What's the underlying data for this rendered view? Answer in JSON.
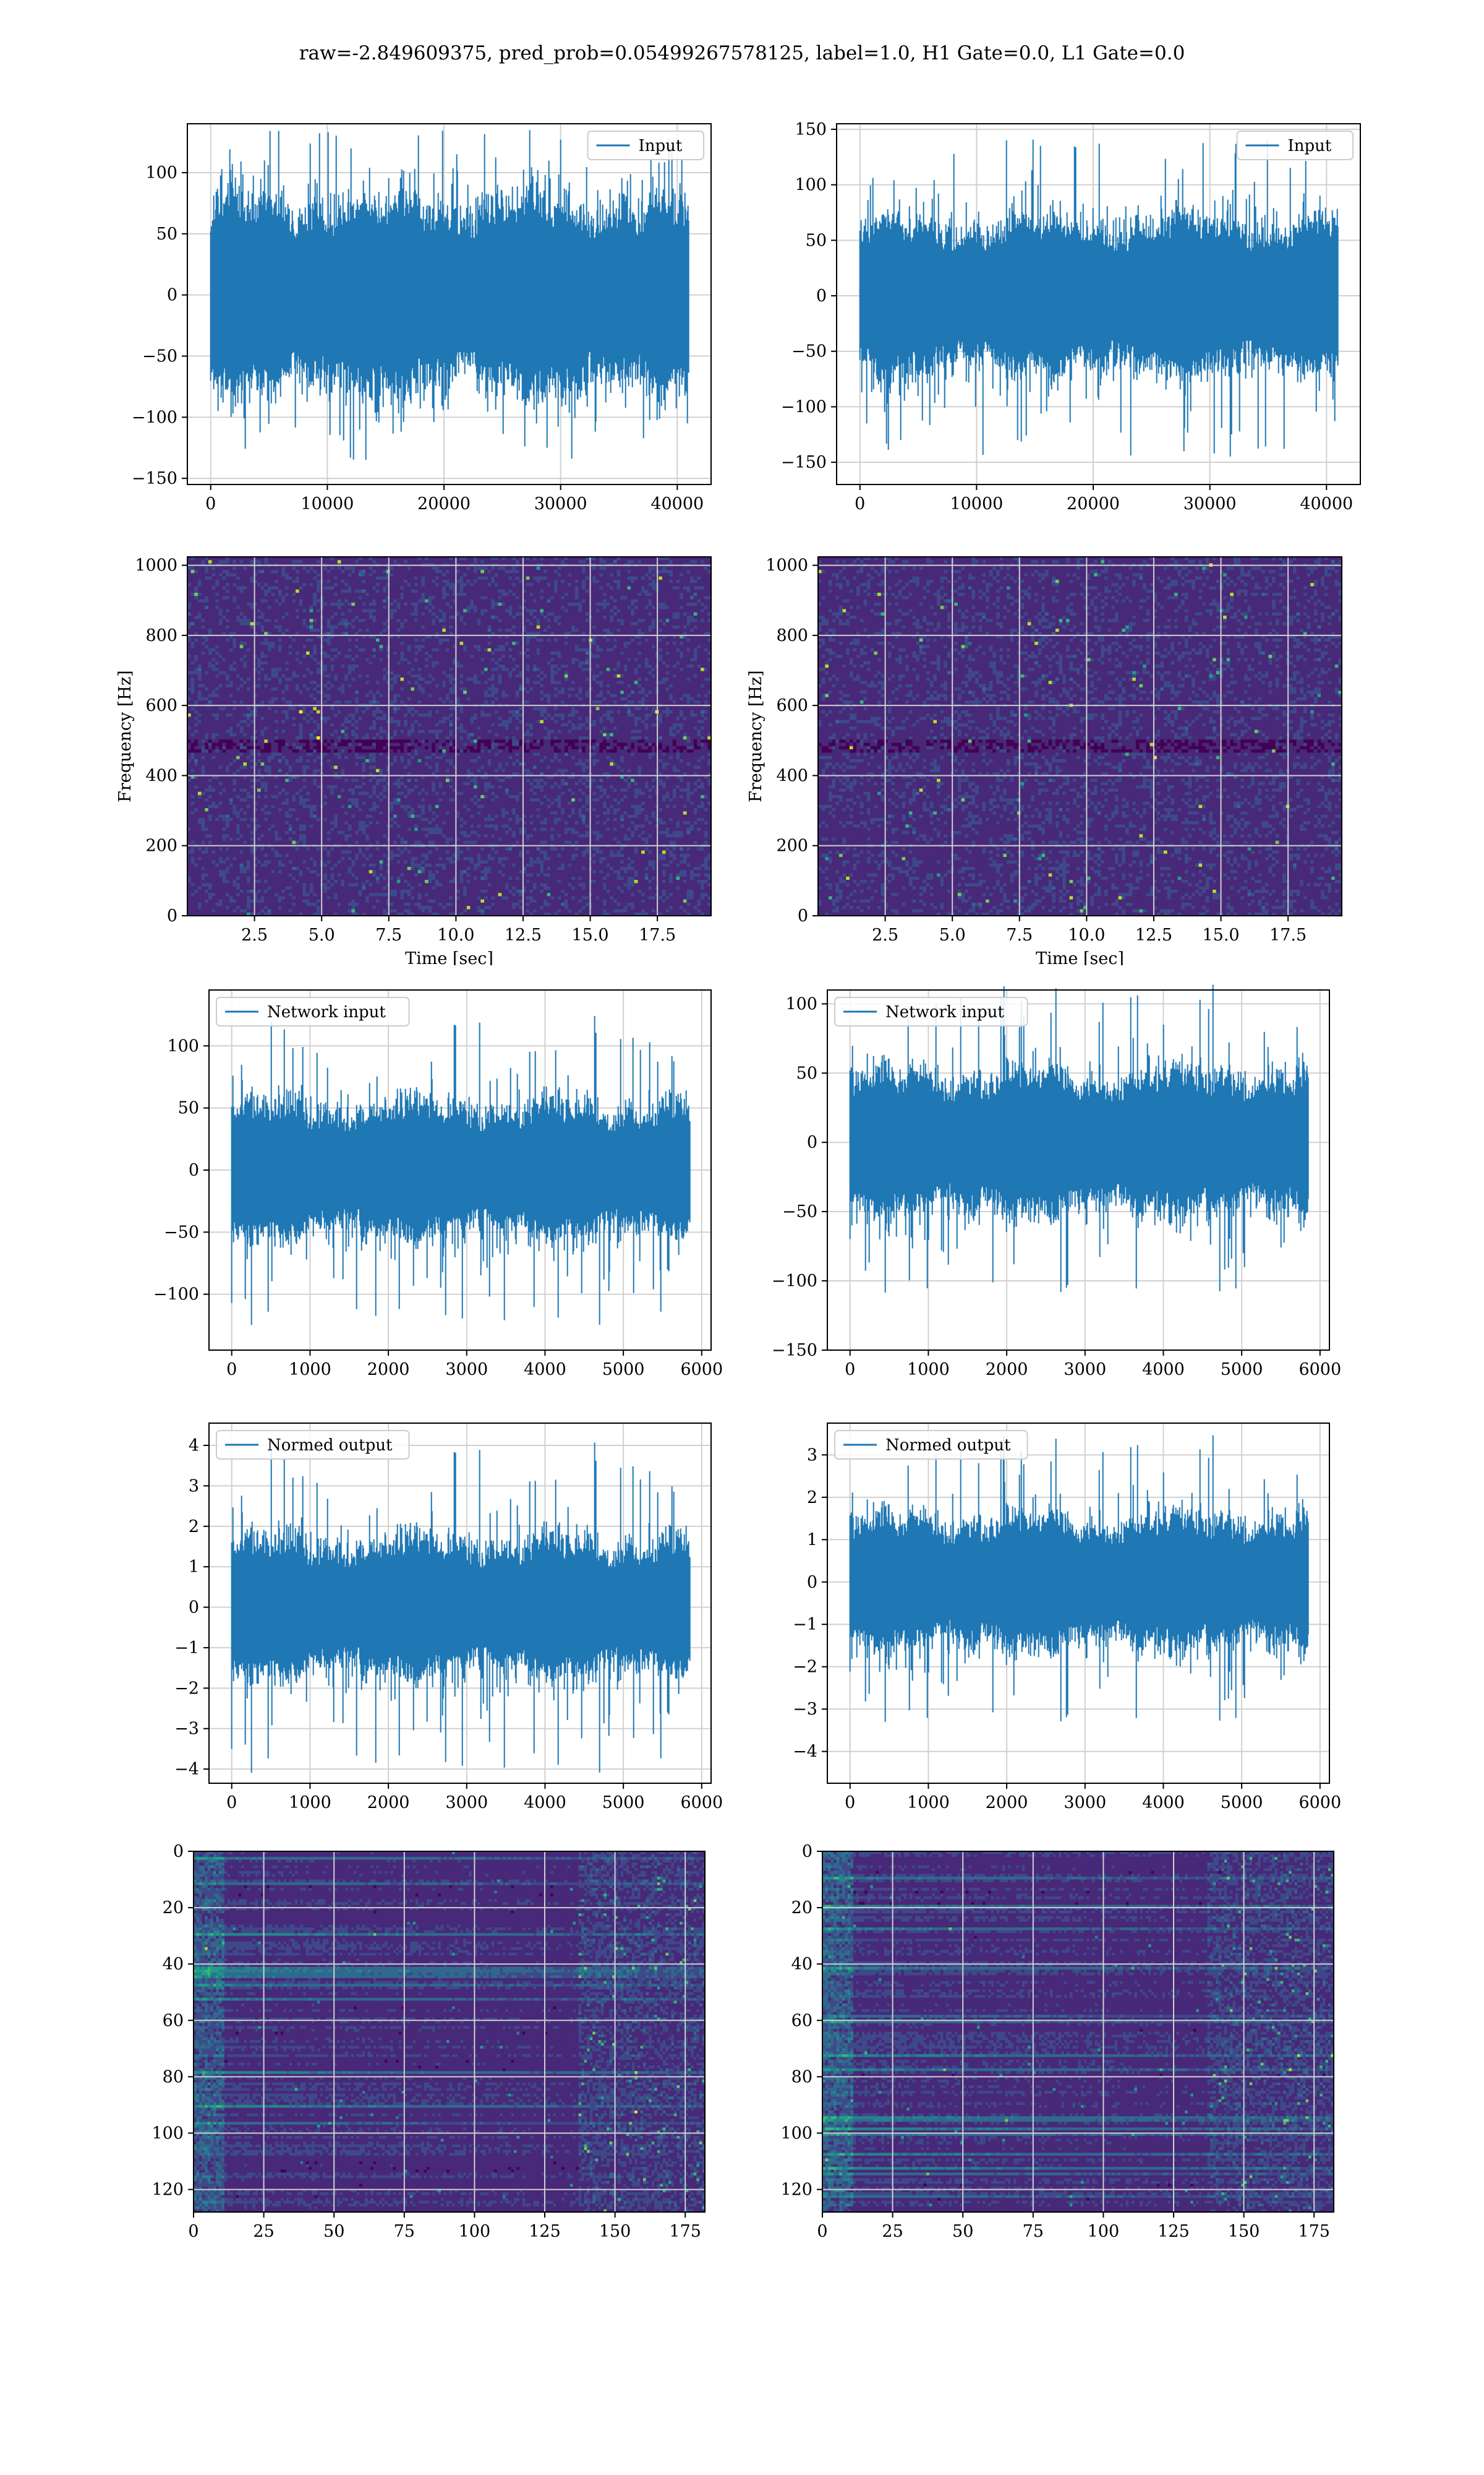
{
  "figure": {
    "suptitle": "raw=-2.849609375, pred_prob=0.05499267578125, label=1.0, H1 Gate=0.0, L1 Gate=0.0"
  },
  "colors": {
    "line": "#1f77b4",
    "grid": "#d0d0d0",
    "viridis": [
      "#440154",
      "#482878",
      "#3e4989",
      "#31688e",
      "#26828e",
      "#1f9e89",
      "#35b779",
      "#6ece58",
      "#b5de2b",
      "#fde725"
    ]
  },
  "chart_data": [
    {
      "id": "r1c1",
      "type": "line",
      "legend": "Input",
      "legend_loc": "upper right",
      "xlim": [
        -2000,
        42900
      ],
      "ylim": [
        -155,
        140
      ],
      "xticks": [
        0,
        10000,
        20000,
        30000,
        40000
      ],
      "yticks": [
        -150,
        -100,
        -50,
        0,
        50,
        100
      ],
      "signal": {
        "n": 40960,
        "x_end": 40960,
        "band": 52,
        "peak": 135,
        "seed": 11
      },
      "xlabel": "",
      "ylabel": "",
      "grid": true
    },
    {
      "id": "r1c2",
      "type": "line",
      "legend": "Input",
      "legend_loc": "upper right",
      "xlim": [
        -2000,
        42900
      ],
      "ylim": [
        -170,
        155
      ],
      "xticks": [
        0,
        10000,
        20000,
        30000,
        40000
      ],
      "yticks": [
        -150,
        -100,
        -50,
        0,
        50,
        100,
        150
      ],
      "signal": {
        "n": 40960,
        "x_end": 40960,
        "band": 45,
        "peak": 145,
        "seed": 23
      },
      "xlabel": "",
      "ylabel": "",
      "grid": true
    },
    {
      "id": "r2c1",
      "type": "heatmap",
      "xlim": [
        0,
        19.5
      ],
      "ylim": [
        0,
        1024
      ],
      "xticks": [
        2.5,
        5.0,
        7.5,
        10.0,
        12.5,
        15.0,
        17.5
      ],
      "yticks": [
        0,
        200,
        400,
        600,
        800,
        1000
      ],
      "xlabel": "Time [sec]",
      "ylabel": "Frequency [Hz]",
      "cells": {
        "nx": 150,
        "ny": 110,
        "seed": 5,
        "style": "spectrogram"
      },
      "grid": true
    },
    {
      "id": "r2c2",
      "type": "heatmap",
      "xlim": [
        0,
        19.5
      ],
      "ylim": [
        0,
        1024
      ],
      "xticks": [
        2.5,
        5.0,
        7.5,
        10.0,
        12.5,
        15.0,
        17.5
      ],
      "yticks": [
        0,
        200,
        400,
        600,
        800,
        1000
      ],
      "xlabel": "Time [sec]",
      "ylabel": "Frequency [Hz]",
      "cells": {
        "nx": 150,
        "ny": 110,
        "seed": 9,
        "style": "spectrogram"
      },
      "grid": true
    },
    {
      "id": "r3c1",
      "type": "line",
      "legend": "Network input",
      "legend_loc": "upper left",
      "xlim": [
        -290,
        6120
      ],
      "ylim": [
        -145,
        145
      ],
      "xticks": [
        0,
        1000,
        2000,
        3000,
        4000,
        5000,
        6000
      ],
      "yticks": [
        -100,
        -50,
        0,
        50,
        100
      ],
      "signal": {
        "n": 5850,
        "x_end": 5850,
        "band": 35,
        "peak": 125,
        "seed": 31
      },
      "xlabel": "",
      "ylabel": "",
      "grid": true
    },
    {
      "id": "r3c2",
      "type": "line",
      "legend": "Network input",
      "legend_loc": "upper left",
      "xlim": [
        -290,
        6120
      ],
      "ylim": [
        -150,
        110
      ],
      "xticks": [
        0,
        1000,
        2000,
        3000,
        4000,
        5000,
        6000
      ],
      "yticks": [
        -150,
        -100,
        -50,
        0,
        50,
        100
      ],
      "signal": {
        "n": 5850,
        "x_end": 5850,
        "band": 33,
        "peak": 115,
        "seed": 47
      },
      "xlabel": "",
      "ylabel": "",
      "grid": true
    },
    {
      "id": "r4c1",
      "type": "line",
      "legend": "Normed output",
      "legend_loc": "upper left",
      "xlim": [
        -290,
        6120
      ],
      "ylim": [
        -4.35,
        4.55
      ],
      "xticks": [
        0,
        1000,
        2000,
        3000,
        4000,
        5000,
        6000
      ],
      "yticks": [
        -4,
        -3,
        -2,
        -1,
        0,
        1,
        2,
        3,
        4
      ],
      "signal": {
        "n": 5850,
        "x_end": 5850,
        "band": 1.1,
        "peak": 4.1,
        "seed": 31
      },
      "xlabel": "",
      "ylabel": "",
      "grid": true
    },
    {
      "id": "r4c2",
      "type": "line",
      "legend": "Normed output",
      "legend_loc": "upper left",
      "xlim": [
        -290,
        6120
      ],
      "ylim": [
        -4.75,
        3.75
      ],
      "xticks": [
        0,
        1000,
        2000,
        3000,
        4000,
        5000,
        6000
      ],
      "yticks": [
        -4,
        -3,
        -2,
        -1,
        0,
        1,
        2,
        3
      ],
      "signal": {
        "n": 5850,
        "x_end": 5850,
        "band": 1.0,
        "peak": 3.5,
        "seed": 47
      },
      "xlabel": "",
      "ylabel": "",
      "grid": true
    },
    {
      "id": "r5c1",
      "type": "heatmap",
      "xlim": [
        0,
        182
      ],
      "ylim": [
        128,
        0
      ],
      "xticks": [
        0,
        25,
        50,
        75,
        100,
        125,
        150,
        175
      ],
      "yticks": [
        0,
        20,
        40,
        60,
        80,
        100,
        120
      ],
      "xlabel": "",
      "ylabel": "",
      "cells": {
        "nx": 182,
        "ny": 128,
        "seed": 13,
        "style": "features"
      },
      "grid": true
    },
    {
      "id": "r5c2",
      "type": "heatmap",
      "xlim": [
        0,
        182
      ],
      "ylim": [
        128,
        0
      ],
      "xticks": [
        0,
        25,
        50,
        75,
        100,
        125,
        150,
        175
      ],
      "yticks": [
        0,
        20,
        40,
        60,
        80,
        100,
        120
      ],
      "xlabel": "",
      "ylabel": "",
      "cells": {
        "nx": 182,
        "ny": 128,
        "seed": 29,
        "style": "features"
      },
      "grid": true
    }
  ]
}
